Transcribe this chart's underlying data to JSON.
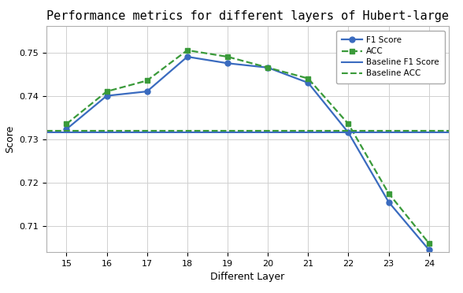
{
  "layers": [
    15,
    16,
    17,
    18,
    19,
    20,
    21,
    22,
    23,
    24
  ],
  "f1_scores": [
    0.7323,
    0.74,
    0.741,
    0.749,
    0.7475,
    0.7465,
    0.743,
    0.7315,
    0.7155,
    0.7045
  ],
  "acc_scores": [
    0.7335,
    0.741,
    0.7435,
    0.7505,
    0.749,
    0.7465,
    0.744,
    0.7335,
    0.7175,
    0.706
  ],
  "baseline_f1": 0.7315,
  "baseline_acc": 0.732,
  "f1_color": "#3a6bbf",
  "acc_color": "#3a9a3a",
  "title": "Performance metrics for different layers of Hubert-large",
  "xlabel": "Different Layer",
  "ylabel": "Score",
  "ylim": [
    0.704,
    0.756
  ],
  "yticks": [
    0.71,
    0.72,
    0.73,
    0.74,
    0.75
  ],
  "legend_labels": [
    "F1 Score",
    "ACC",
    "Baseline F1 Score",
    "Baseline ACC"
  ],
  "background_color": "#ffffff",
  "grid_color": "#d0d0d0"
}
